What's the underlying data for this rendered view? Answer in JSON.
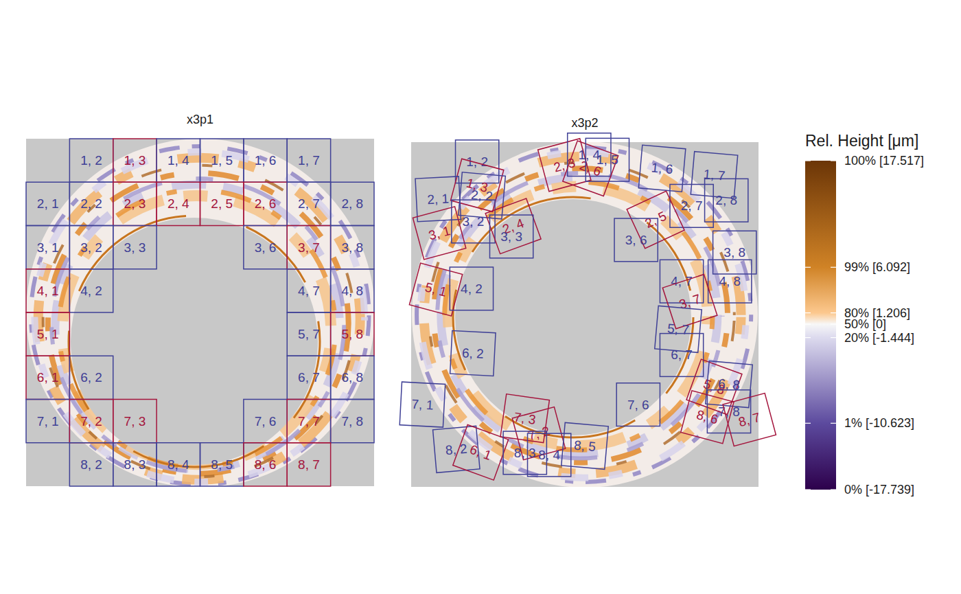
{
  "chart_data": {
    "type": "heatmap",
    "panels": [
      {
        "title": "x3p1",
        "xlim": [
          0,
          8
        ],
        "ylim": [
          0,
          8
        ],
        "cells": [
          {
            "label": "1, 2",
            "row": 1,
            "col": 2,
            "color": "#3f4096"
          },
          {
            "label": "1, 3",
            "row": 1,
            "col": 3,
            "color": "#a4153d"
          },
          {
            "label": "1, 4",
            "row": 1,
            "col": 4,
            "color": "#3f4096"
          },
          {
            "label": "1, 5",
            "row": 1,
            "col": 5,
            "color": "#3f4096"
          },
          {
            "label": "1, 6",
            "row": 1,
            "col": 6,
            "color": "#3f4096"
          },
          {
            "label": "1, 7",
            "row": 1,
            "col": 7,
            "color": "#3f4096"
          },
          {
            "label": "2, 1",
            "row": 2,
            "col": 1,
            "color": "#3f4096"
          },
          {
            "label": "2, 2",
            "row": 2,
            "col": 2,
            "color": "#3f4096"
          },
          {
            "label": "2, 3",
            "row": 2,
            "col": 3,
            "color": "#a4153d"
          },
          {
            "label": "2, 4",
            "row": 2,
            "col": 4,
            "color": "#a4153d"
          },
          {
            "label": "2, 5",
            "row": 2,
            "col": 5,
            "color": "#a4153d"
          },
          {
            "label": "2, 6",
            "row": 2,
            "col": 6,
            "color": "#a4153d"
          },
          {
            "label": "2, 7",
            "row": 2,
            "col": 7,
            "color": "#3f4096"
          },
          {
            "label": "2, 8",
            "row": 2,
            "col": 8,
            "color": "#3f4096"
          },
          {
            "label": "3, 1",
            "row": 3,
            "col": 1,
            "color": "#3f4096"
          },
          {
            "label": "3, 2",
            "row": 3,
            "col": 2,
            "color": "#3f4096"
          },
          {
            "label": "3, 3",
            "row": 3,
            "col": 3,
            "color": "#3f4096"
          },
          {
            "label": "3, 6",
            "row": 3,
            "col": 6,
            "color": "#3f4096"
          },
          {
            "label": "3, 7",
            "row": 3,
            "col": 7,
            "color": "#a4153d"
          },
          {
            "label": "3, 8",
            "row": 3,
            "col": 8,
            "color": "#3f4096"
          },
          {
            "label": "4, 1",
            "row": 4,
            "col": 1,
            "color": "#a4153d"
          },
          {
            "label": "4, 2",
            "row": 4,
            "col": 2,
            "color": "#3f4096"
          },
          {
            "label": "4, 7",
            "row": 4,
            "col": 7,
            "color": "#3f4096"
          },
          {
            "label": "4, 8",
            "row": 4,
            "col": 8,
            "color": "#3f4096"
          },
          {
            "label": "5, 1",
            "row": 5,
            "col": 1,
            "color": "#a4153d"
          },
          {
            "label": "5, 7",
            "row": 5,
            "col": 7,
            "color": "#3f4096"
          },
          {
            "label": "5, 8",
            "row": 5,
            "col": 8,
            "color": "#a4153d"
          },
          {
            "label": "6, 1",
            "row": 6,
            "col": 1,
            "color": "#a4153d"
          },
          {
            "label": "6, 2",
            "row": 6,
            "col": 2,
            "color": "#3f4096"
          },
          {
            "label": "6, 7",
            "row": 6,
            "col": 7,
            "color": "#3f4096"
          },
          {
            "label": "6, 8",
            "row": 6,
            "col": 8,
            "color": "#3f4096"
          },
          {
            "label": "7, 1",
            "row": 7,
            "col": 1,
            "color": "#3f4096"
          },
          {
            "label": "7, 2",
            "row": 7,
            "col": 2,
            "color": "#a4153d"
          },
          {
            "label": "7, 3",
            "row": 7,
            "col": 3,
            "color": "#a4153d"
          },
          {
            "label": "7, 6",
            "row": 7,
            "col": 6,
            "color": "#3f4096"
          },
          {
            "label": "7, 7",
            "row": 7,
            "col": 7,
            "color": "#a4153d"
          },
          {
            "label": "7, 8",
            "row": 7,
            "col": 8,
            "color": "#3f4096"
          },
          {
            "label": "8, 2",
            "row": 8,
            "col": 2,
            "color": "#3f4096"
          },
          {
            "label": "8, 3",
            "row": 8,
            "col": 3,
            "color": "#3f4096"
          },
          {
            "label": "8, 4",
            "row": 8,
            "col": 4,
            "color": "#3f4096"
          },
          {
            "label": "8, 5",
            "row": 8,
            "col": 5,
            "color": "#3f4096"
          },
          {
            "label": "8, 6",
            "row": 8,
            "col": 6,
            "color": "#a4153d"
          },
          {
            "label": "8, 7",
            "row": 8,
            "col": 7,
            "color": "#a4153d"
          }
        ]
      },
      {
        "title": "x3p2",
        "xlim": [
          0,
          8
        ],
        "ylim": [
          0,
          8
        ],
        "cells": [
          {
            "label": "1, 2",
            "x": 1.52,
            "y": 0.45,
            "theta": 0,
            "color": "#3f4096"
          },
          {
            "label": "1, 3",
            "x": 1.52,
            "y": 1.0,
            "theta": 15,
            "color": "#a4153d"
          },
          {
            "label": "2, 1",
            "x": 0.62,
            "y": 1.32,
            "theta": -3,
            "color": "#3f4096"
          },
          {
            "label": "2, 2",
            "x": 1.63,
            "y": 1.24,
            "theta": 5,
            "color": "#3f4096"
          },
          {
            "label": "3, 1",
            "x": 0.65,
            "y": 2.11,
            "theta": -15,
            "color": "#a4153d"
          },
          {
            "label": "3, 2",
            "x": 1.43,
            "y": 1.84,
            "theta": 0,
            "color": "#3f4096"
          },
          {
            "label": "2, 4",
            "x": 2.35,
            "y": 1.95,
            "theta": -20,
            "color": "#a4153d"
          },
          {
            "label": "3, 3",
            "x": 2.31,
            "y": 2.19,
            "theta": 0,
            "color": "#3f4096"
          },
          {
            "label": "5, 1",
            "x": 0.57,
            "y": 3.42,
            "theta": 15,
            "color": "#a4153d"
          },
          {
            "label": "4, 2",
            "x": 1.39,
            "y": 3.4,
            "theta": 0,
            "color": "#3f4096"
          },
          {
            "label": "6, 2",
            "x": 1.42,
            "y": 4.9,
            "theta": 3,
            "color": "#3f4096"
          },
          {
            "label": "7, 1",
            "x": 0.26,
            "y": 6.09,
            "theta": 3,
            "color": "#3f4096"
          },
          {
            "label": "8, 2",
            "x": 1.04,
            "y": 7.13,
            "theta": -5,
            "color": "#3f4096"
          },
          {
            "label": "6, 1",
            "x": 1.6,
            "y": 7.2,
            "theta": 20,
            "color": "#a4153d"
          },
          {
            "label": "7, 3",
            "x": 2.62,
            "y": 6.41,
            "theta": 8,
            "color": "#a4153d"
          },
          {
            "label": "7, 2",
            "x": 2.94,
            "y": 6.76,
            "theta": -15,
            "color": "#a4153d"
          },
          {
            "label": "8, 3",
            "x": 2.62,
            "y": 7.21,
            "theta": 0,
            "color": "#3f4096"
          },
          {
            "label": "8, 4",
            "x": 3.18,
            "y": 7.26,
            "theta": 0,
            "color": "#3f4096"
          },
          {
            "label": "8, 5",
            "x": 4.0,
            "y": 7.05,
            "theta": 5,
            "color": "#3f4096"
          },
          {
            "label": "2, 3",
            "x": 3.53,
            "y": 0.53,
            "theta": -15,
            "color": "#a4153d"
          },
          {
            "label": "1, 4",
            "x": 4.1,
            "y": 0.29,
            "theta": 0,
            "color": "#3f4096"
          },
          {
            "label": "2, 6",
            "x": 4.13,
            "y": 0.61,
            "theta": 20,
            "color": "#a4153d"
          },
          {
            "label": "1, 5",
            "x": 4.52,
            "y": 0.41,
            "theta": 0,
            "color": "#3f4096"
          },
          {
            "label": "1, 6",
            "x": 5.78,
            "y": 0.61,
            "theta": 5,
            "color": "#3f4096"
          },
          {
            "label": "1, 7",
            "x": 6.98,
            "y": 0.76,
            "theta": 5,
            "color": "#3f4096"
          },
          {
            "label": "2, 7",
            "x": 6.46,
            "y": 1.48,
            "theta": 0,
            "color": "#3f4096"
          },
          {
            "label": "2, 8",
            "x": 7.26,
            "y": 1.35,
            "theta": 0,
            "color": "#3f4096"
          },
          {
            "label": "2, 5",
            "x": 5.63,
            "y": 1.8,
            "theta": -25,
            "color": "#a4153d"
          },
          {
            "label": "3, 6",
            "x": 5.18,
            "y": 2.27,
            "theta": 0,
            "color": "#3f4096"
          },
          {
            "label": "3, 8",
            "x": 7.45,
            "y": 2.56,
            "theta": 0,
            "color": "#3f4096"
          },
          {
            "label": "4, 7",
            "x": 6.23,
            "y": 3.23,
            "theta": 0,
            "color": "#3f4096"
          },
          {
            "label": "4, 8",
            "x": 7.34,
            "y": 3.23,
            "theta": 0,
            "color": "#3f4096"
          },
          {
            "label": "3, 7",
            "x": 6.42,
            "y": 3.7,
            "theta": -18,
            "color": "#a4153d"
          },
          {
            "label": "5, 7",
            "x": 6.15,
            "y": 4.34,
            "theta": 5,
            "color": "#3f4096"
          },
          {
            "label": "6, 7",
            "x": 6.23,
            "y": 4.94,
            "theta": 0,
            "color": "#3f4096"
          },
          {
            "label": "7, 6",
            "x": 5.23,
            "y": 6.09,
            "theta": 0,
            "color": "#3f4096"
          },
          {
            "label": "5, 8",
            "x": 6.98,
            "y": 5.68,
            "theta": 20,
            "color": "#a4153d"
          },
          {
            "label": "6, 8",
            "x": 7.32,
            "y": 5.62,
            "theta": 5,
            "color": "#3f4096"
          },
          {
            "label": "7, 8",
            "x": 7.32,
            "y": 6.25,
            "theta": 0,
            "color": "#3f4096"
          },
          {
            "label": "8, 6",
            "x": 6.82,
            "y": 6.38,
            "theta": 15,
            "color": "#a4153d"
          },
          {
            "label": "8, 7",
            "x": 7.79,
            "y": 6.44,
            "theta": -15,
            "color": "#a4153d"
          }
        ]
      }
    ],
    "colorbar": {
      "title": "Rel. Height [μm]",
      "ylim": [
        -17.739,
        17.517
      ],
      "ticks": [
        {
          "value": 17.517,
          "label": "100% [17.517]"
        },
        {
          "value": 6.092,
          "label": "99% [6.092]"
        },
        {
          "value": 1.206,
          "label": "80% [1.206]"
        },
        {
          "value": 0,
          "label": "50% [0]"
        },
        {
          "value": -1.444,
          "label": "20% [-1.444]"
        },
        {
          "value": -10.623,
          "label": "1% [-10.623]"
        },
        {
          "value": -17.739,
          "label": "0% [-17.739]"
        }
      ],
      "stops": [
        {
          "value": 17.517,
          "color": "#6b3507"
        },
        {
          "value": 6.092,
          "color": "#d08326"
        },
        {
          "value": 1.206,
          "color": "#fcc88e"
        },
        {
          "value": 0,
          "color": "#f7f7f7"
        },
        {
          "value": -1.444,
          "color": "#dcdaee"
        },
        {
          "value": -10.623,
          "color": "#5c4a9e"
        },
        {
          "value": -17.739,
          "color": "#2d004b"
        }
      ]
    }
  }
}
